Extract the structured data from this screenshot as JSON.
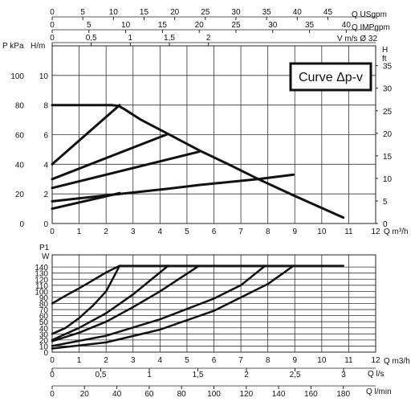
{
  "chart_data": [
    {
      "type": "line",
      "legend": "Curve Δp-v",
      "grid": true,
      "x": {
        "label": "Q m³/h",
        "range": [
          0,
          12
        ],
        "ticks": [
          "0",
          "1",
          "2",
          "3",
          "4",
          "5",
          "6",
          "7",
          "8",
          "9",
          "10",
          "11",
          "12"
        ]
      },
      "top_axes": [
        {
          "label": "Q USgpm",
          "range": [
            0,
            52.8
          ],
          "ticks": [
            "0",
            "5",
            "10",
            "15",
            "20",
            "25",
            "30",
            "35",
            "40",
            "45"
          ],
          "values": [
            0,
            5,
            10,
            15,
            20,
            25,
            30,
            35,
            40,
            45
          ]
        },
        {
          "label": "Q IMPgpm",
          "range": [
            0,
            44
          ],
          "ticks": [
            "0",
            "5",
            "10",
            "15",
            "20",
            "25",
            "30",
            "35",
            "40"
          ],
          "values": [
            0,
            5,
            10,
            15,
            20,
            25,
            30,
            35,
            40
          ]
        },
        {
          "label": "V m/s Ø 32",
          "range": [
            0,
            4.14
          ],
          "ticks": [
            "0",
            "0,5",
            "1",
            "1,5",
            "2"
          ],
          "values": [
            0,
            0.5,
            1,
            1.5,
            2
          ]
        }
      ],
      "y_left": {
        "label_pressure": "P kPa",
        "label_head": "H/m",
        "ticks_kpa": [
          "0",
          "20",
          "40",
          "60",
          "80",
          "100"
        ],
        "ticks_m": [
          "0",
          "2",
          "4",
          "6",
          "8",
          "10"
        ],
        "range": [
          0,
          12
        ]
      },
      "y_right": {
        "label_top": "H",
        "label_bottom": "ft",
        "ticks": [
          "0",
          "5",
          "10",
          "15",
          "20",
          "25",
          "30",
          "35"
        ],
        "range": [
          0,
          39.4
        ]
      },
      "series": [
        {
          "x": [
            0,
            2.5
          ],
          "y": [
            1.0,
            2.05
          ]
        },
        {
          "x": [
            0,
            4.3,
            5.45,
            7.65,
            8.95
          ],
          "y": [
            1.5,
            2.35,
            2.6,
            3.0,
            3.3
          ]
        },
        {
          "x": [
            0,
            5.45
          ],
          "y": [
            2.4,
            4.85
          ]
        },
        {
          "x": [
            0,
            4.3
          ],
          "y": [
            3.0,
            6.05
          ]
        },
        {
          "x": [
            0,
            2.5
          ],
          "y": [
            4.0,
            8.0
          ]
        },
        {
          "x": [
            0,
            2.2,
            2.45,
            2.7,
            3.3,
            4.3,
            5.5,
            6.6,
            7.65,
            8.95,
            10.8
          ],
          "y": [
            8.0,
            8.0,
            7.95,
            7.7,
            7.0,
            6.05,
            4.9,
            3.95,
            3.0,
            1.9,
            0.4
          ]
        }
      ]
    },
    {
      "type": "line",
      "grid": true,
      "x": {
        "label": "Q m3/h",
        "range": [
          0,
          12
        ],
        "ticks": [
          "0",
          "1",
          "2",
          "3",
          "4",
          "5",
          "6",
          "7",
          "8",
          "9",
          "10",
          "11",
          "12"
        ]
      },
      "bottom_axes": [
        {
          "label": "Q l/s",
          "range": [
            0,
            3.33
          ],
          "ticks": [
            "0",
            "0,5",
            "1",
            "1,5",
            "2",
            "2,5",
            "3"
          ],
          "values": [
            0,
            0.5,
            1,
            1.5,
            2,
            2.5,
            3
          ]
        },
        {
          "label": "Q l/min",
          "range": [
            0,
            200
          ],
          "ticks": [
            "0",
            "20",
            "40",
            "60",
            "80",
            "100",
            "120",
            "140",
            "160",
            "180"
          ],
          "values": [
            0,
            20,
            40,
            60,
            80,
            100,
            120,
            140,
            160,
            180
          ]
        }
      ],
      "y": {
        "label_top": "P1",
        "label_unit": "W",
        "range": [
          0,
          160
        ],
        "ticks": [
          "0",
          "10",
          "20",
          "30",
          "40",
          "50",
          "60",
          "70",
          "80",
          "90",
          "100",
          "110",
          "120",
          "130",
          "140"
        ]
      },
      "series": [
        {
          "x": [
            0,
            0.5,
            1,
            1.5,
            2,
            2.5,
            10.8
          ],
          "y": [
            80,
            93,
            105,
            118,
            131,
            142,
            142
          ]
        },
        {
          "x": [
            0,
            0.5,
            1,
            1.5,
            2,
            2.3,
            2.5
          ],
          "y": [
            30,
            40,
            56,
            76,
            100,
            125,
            142
          ]
        },
        {
          "x": [
            0,
            1,
            2,
            3,
            3.5,
            4.3
          ],
          "y": [
            20,
            40,
            64,
            95,
            113,
            142
          ]
        },
        {
          "x": [
            0,
            1,
            2,
            3,
            4,
            5.45
          ],
          "y": [
            18,
            32,
            50,
            74,
            100,
            142
          ]
        },
        {
          "x": [
            0,
            2,
            4,
            6,
            7,
            7.9
          ],
          "y": [
            10,
            27,
            54,
            88,
            110,
            142
          ]
        },
        {
          "x": [
            0,
            2,
            4,
            6,
            8,
            8.95
          ],
          "y": [
            6,
            16,
            37,
            68,
            112,
            142
          ]
        }
      ]
    }
  ]
}
